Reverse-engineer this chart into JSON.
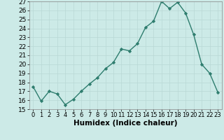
{
  "x": [
    0,
    1,
    2,
    3,
    4,
    5,
    6,
    7,
    8,
    9,
    10,
    11,
    12,
    13,
    14,
    15,
    16,
    17,
    18,
    19,
    20,
    21,
    22,
    23
  ],
  "y": [
    17.5,
    15.9,
    17.0,
    16.7,
    15.5,
    16.1,
    17.0,
    17.8,
    18.5,
    19.5,
    20.2,
    21.7,
    21.5,
    22.3,
    24.1,
    24.8,
    27.0,
    26.2,
    26.9,
    25.7,
    23.3,
    20.0,
    19.0,
    16.9
  ],
  "line_color": "#2e7d6e",
  "marker": "D",
  "marker_size": 2.2,
  "bg_color": "#cceae7",
  "grid_color": "#b8d8d5",
  "xlabel": "Humidex (Indice chaleur)",
  "ylim": [
    15,
    27
  ],
  "xlim": [
    -0.5,
    23.5
  ],
  "yticks": [
    15,
    16,
    17,
    18,
    19,
    20,
    21,
    22,
    23,
    24,
    25,
    26,
    27
  ],
  "xticks": [
    0,
    1,
    2,
    3,
    4,
    5,
    6,
    7,
    8,
    9,
    10,
    11,
    12,
    13,
    14,
    15,
    16,
    17,
    18,
    19,
    20,
    21,
    22,
    23
  ],
  "xlabel_fontsize": 7.5,
  "ytick_fontsize": 6.5,
  "xtick_fontsize": 6.0,
  "line_width": 1.0
}
